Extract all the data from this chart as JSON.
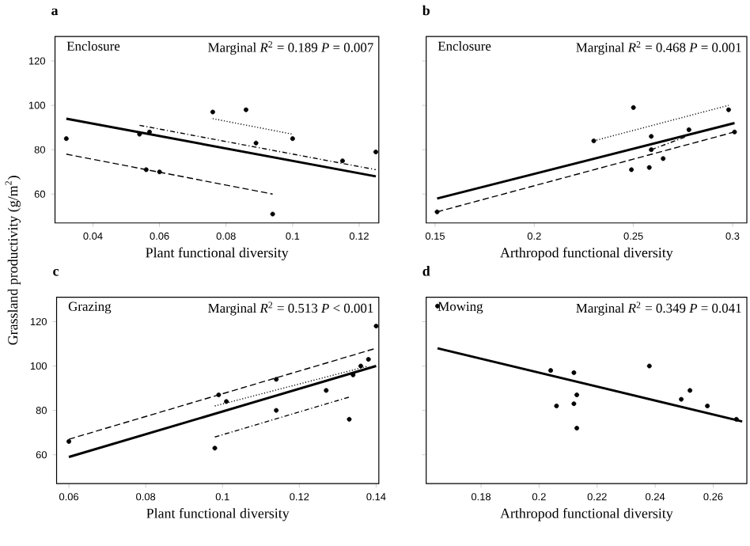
{
  "chart_data": [
    {
      "type": "scatter",
      "title": "a",
      "xlabel": "Plant functional diversity",
      "ylabel": "Grassland productivity (g/m$^{2}$)",
      "annotations": [
        "Enclosure",
        "Marginal *R*$^{2}$ = 0.189  *P* = 0.007"
      ],
      "xlim": [
        0.0286,
        0.1259
      ],
      "ylim": [
        47,
        131
      ],
      "xticks": [
        0.04,
        0.06,
        0.08,
        0.1,
        0.12
      ],
      "yticks": [
        60,
        80,
        100,
        120
      ],
      "series": [
        {
          "type": "scatter",
          "marker": "circle",
          "color": "#000000",
          "x": [
            0.032,
            0.054,
            0.057,
            0.056,
            0.06,
            0.076,
            0.086,
            0.089,
            0.1,
            0.094,
            0.115,
            0.125
          ],
          "values": [
            85,
            87,
            88,
            71,
            70,
            97,
            98,
            83,
            85,
            51,
            75,
            79
          ]
        },
        {
          "type": "line",
          "marker": "none",
          "line_style": "solid",
          "color": "#000000",
          "x": [
            0.032,
            0.125
          ],
          "values": [
            94,
            68
          ]
        },
        {
          "type": "line",
          "marker": "none",
          "line_style": "dashed",
          "color": "#000000",
          "x": [
            0.032,
            0.094
          ],
          "values": [
            78,
            60
          ]
        },
        {
          "type": "line",
          "marker": "none",
          "line_style": "dotted",
          "color": "#000000",
          "x": [
            0.076,
            0.1
          ],
          "values": [
            94,
            87
          ]
        },
        {
          "type": "line",
          "marker": "none",
          "line_style": "dashdot",
          "color": "#000000",
          "x": [
            0.054,
            0.125
          ],
          "values": [
            91,
            71
          ]
        }
      ]
    },
    {
      "type": "scatter",
      "title": "b",
      "xlabel": "Arthropod functional diversity",
      "annotations": [
        "Enclosure",
        "Marginal *R*$^{2}$ = 0.468  *P* = 0.001"
      ],
      "xlim": [
        0.1455,
        0.3072
      ],
      "ylim": [
        47,
        131
      ],
      "xticks": [
        0.15,
        0.2,
        0.25,
        0.3
      ],
      "yticks": [
        60,
        80,
        100,
        120
      ],
      "tick_labels": "x",
      "series": [
        {
          "type": "scatter",
          "marker": "circle",
          "color": "#000000",
          "x": [
            0.151,
            0.23,
            0.25,
            0.259,
            0.259,
            0.249,
            0.258,
            0.265,
            0.278,
            0.298,
            0.301
          ],
          "values": [
            52,
            84,
            99,
            86,
            80,
            71,
            72,
            76,
            89,
            98,
            88
          ]
        },
        {
          "type": "line",
          "marker": "none",
          "line_style": "solid",
          "color": "#000000",
          "x": [
            0.151,
            0.301
          ],
          "values": [
            58,
            92
          ]
        },
        {
          "type": "line",
          "marker": "none",
          "line_style": "dashed",
          "color": "#000000",
          "x": [
            0.151,
            0.301
          ],
          "values": [
            52,
            88
          ]
        },
        {
          "type": "line",
          "marker": "none",
          "line_style": "dotted",
          "color": "#000000",
          "x": [
            0.23,
            0.298
          ],
          "values": [
            84,
            100
          ]
        },
        {
          "type": "line",
          "marker": "none",
          "line_style": "dashdot",
          "color": "#000000",
          "x": [
            0.259,
            0.277
          ],
          "values": [
            80,
            86
          ]
        }
      ]
    },
    {
      "type": "scatter",
      "title": "c",
      "xlabel": "Plant functional diversity",
      "annotations": [
        "Grazing",
        "Marginal *R*$^{2}$ = 0.513  *P* < 0.001"
      ],
      "xlim": [
        0.0568,
        0.1407
      ],
      "ylim": [
        47,
        131
      ],
      "xticks": [
        0.06,
        0.08,
        0.1,
        0.12,
        0.14
      ],
      "yticks": [
        60,
        80,
        100,
        120
      ],
      "series": [
        {
          "type": "scatter",
          "marker": "circle",
          "color": "#000000",
          "x": [
            0.06,
            0.098,
            0.099,
            0.101,
            0.114,
            0.114,
            0.127,
            0.133,
            0.134,
            0.136,
            0.138,
            0.14
          ],
          "values": [
            66,
            63,
            87,
            84,
            94,
            80,
            89,
            76,
            96,
            100,
            103,
            118
          ]
        },
        {
          "type": "line",
          "marker": "none",
          "line_style": "solid",
          "color": "#000000",
          "x": [
            0.06,
            0.14
          ],
          "values": [
            59,
            100
          ]
        },
        {
          "type": "line",
          "marker": "none",
          "line_style": "dashed",
          "color": "#000000",
          "x": [
            0.06,
            0.14
          ],
          "values": [
            67,
            108
          ]
        },
        {
          "type": "line",
          "marker": "none",
          "line_style": "dotted",
          "color": "#000000",
          "x": [
            0.098,
            0.138
          ],
          "values": [
            82,
            100
          ]
        },
        {
          "type": "line",
          "marker": "none",
          "line_style": "dashdot",
          "color": "#000000",
          "x": [
            0.098,
            0.133
          ],
          "values": [
            68,
            86
          ]
        }
      ]
    },
    {
      "type": "scatter",
      "title": "d",
      "xlabel": "Arthropod functional diversity",
      "annotations": [
        "Mowing",
        "Marginal *R*$^{2}$ = 0.349  *P* = 0.041"
      ],
      "xlim": [
        0.1611,
        0.2716
      ],
      "ylim": [
        47,
        131
      ],
      "xticks": [
        0.18,
        0.2,
        0.22,
        0.24,
        0.26
      ],
      "yticks": [
        60,
        80,
        100,
        120
      ],
      "tick_labels": "x",
      "series": [
        {
          "type": "scatter",
          "marker": "circle",
          "color": "#000000",
          "x": [
            0.165,
            0.204,
            0.206,
            0.212,
            0.212,
            0.213,
            0.213,
            0.238,
            0.249,
            0.252,
            0.258,
            0.268
          ],
          "values": [
            127,
            98,
            82,
            97,
            83,
            87,
            72,
            100,
            85,
            89,
            82,
            76
          ]
        },
        {
          "type": "line",
          "marker": "none",
          "line_style": "solid",
          "color": "#000000",
          "x": [
            0.165,
            0.27
          ],
          "values": [
            108,
            75
          ]
        }
      ]
    }
  ]
}
